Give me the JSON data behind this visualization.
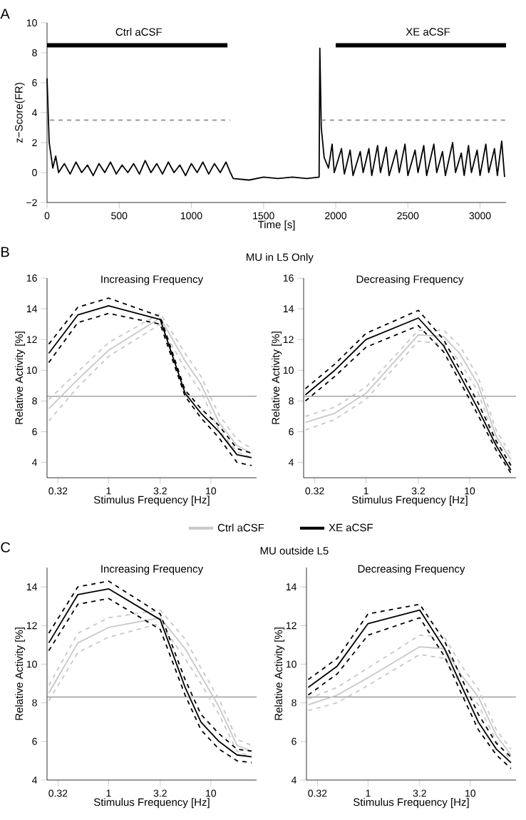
{
  "chart_data": [
    {
      "type": "line",
      "xlabel": "Time [s]",
      "ylabel": "z−Score(FR)",
      "xlim": [
        0,
        3180
      ],
      "ylim": [
        -2,
        10
      ],
      "xticks": [
        0,
        500,
        1000,
        1500,
        2000,
        2500,
        3000
      ],
      "yticks": [
        {
          "value": -2,
          "label": "−2"
        },
        0,
        2,
        4,
        6,
        8,
        10
      ],
      "annotations": [
        "A",
        "Ctrl aCSF",
        "XE aCSF"
      ],
      "series": [
        {
          "color": "#000000",
          "x": [
            0,
            15,
            40,
            60,
            80,
            120,
            160,
            200,
            240,
            280,
            320,
            360,
            400,
            440,
            480,
            520,
            560,
            600,
            640,
            680,
            720,
            760,
            800,
            840,
            880,
            920,
            960,
            1000,
            1040,
            1080,
            1120,
            1160,
            1200,
            1240,
            1270,
            1290,
            1400,
            1500,
            1600,
            1700,
            1800,
            1885,
            1890,
            1900,
            1920,
            1950,
            1975,
            1990,
            2040,
            2060,
            2100,
            2120,
            2170,
            2190,
            2230,
            2250,
            2290,
            2310,
            2350,
            2370,
            2420,
            2440,
            2480,
            2500,
            2550,
            2570,
            2610,
            2630,
            2680,
            2700,
            2740,
            2760,
            2810,
            2830,
            2870,
            2890,
            2920,
            2940,
            2980,
            3000,
            3040,
            3060,
            3100,
            3120,
            3150,
            3170
          ],
          "values": [
            6.3,
            2.0,
            0.3,
            1.1,
            0.0,
            0.6,
            -0.1,
            0.7,
            0.0,
            0.5,
            -0.2,
            0.6,
            0.0,
            0.7,
            -0.1,
            0.5,
            0.0,
            0.6,
            -0.1,
            0.8,
            0.0,
            0.6,
            -0.1,
            0.7,
            0.0,
            0.5,
            -0.2,
            0.6,
            0.0,
            0.7,
            -0.1,
            0.6,
            0.0,
            0.7,
            0.0,
            -0.4,
            -0.5,
            -0.3,
            -0.4,
            -0.3,
            -0.4,
            -0.3,
            8.3,
            3.0,
            1.0,
            0.3,
            1.9,
            0.0,
            1.6,
            -0.1,
            1.5,
            -0.2,
            1.4,
            0.0,
            1.6,
            -0.2,
            1.8,
            0.0,
            1.7,
            -0.2,
            1.5,
            0.0,
            1.9,
            -0.2,
            1.5,
            0.0,
            1.8,
            -0.2,
            1.9,
            0.0,
            1.4,
            -0.2,
            2.0,
            0.0,
            1.3,
            -0.2,
            1.8,
            0.0,
            1.5,
            -0.2,
            1.9,
            0.0,
            1.6,
            -0.2,
            2.1,
            -0.3
          ]
        },
        {
          "color": "#999999",
          "line_style": "dashed",
          "x": [
            20,
            1270,
            1580,
            1900,
            3180
          ],
          "values": [
            3.5,
            3.5,
            null,
            3.5,
            3.5
          ]
        },
        {
          "color": "#000000",
          "x": [
            0,
            1250,
            1580,
            2000,
            3180
          ],
          "values": [
            8.5,
            8.5,
            null,
            8.5,
            8.5
          ]
        }
      ]
    },
    {
      "type": "line",
      "title": "Increasing Frequency",
      "subtitle": "MU in L5 Only",
      "xlabel": "Stimulus Frequency [Hz]",
      "ylabel": "Relative Activity [%]",
      "log": "x",
      "xlim": [
        0.25,
        28
      ],
      "ylim": [
        3,
        16
      ],
      "xticks": [
        0.32,
        1,
        3.2,
        10
      ],
      "yticks": [
        4,
        6,
        8,
        10,
        12,
        14,
        16
      ],
      "legend": "bottom",
      "annotations": [
        "B"
      ],
      "ref_lines": [
        {
          "axis": "y",
          "value": 8.3,
          "color": "#555555"
        }
      ],
      "series": [
        {
          "name": "Ctrl aCSF",
          "color": "#c8c8c8",
          "x": [
            0.26,
            0.5,
            1,
            3.2,
            5.6,
            8,
            12,
            18,
            25
          ],
          "values": [
            7.5,
            9.4,
            11.3,
            13.4,
            10.6,
            9.1,
            6.6,
            5.1,
            4.6
          ]
        },
        {
          "color": "#c8c8c8",
          "line_style": "dashed",
          "x": [
            0.26,
            0.5,
            1,
            3.2,
            5.6,
            8,
            12,
            18,
            25
          ],
          "values": [
            6.7,
            8.9,
            10.9,
            13.0,
            10.1,
            8.6,
            6.1,
            4.7,
            4.3
          ]
        },
        {
          "color": "#c8c8c8",
          "line_style": "dashed",
          "x": [
            0.26,
            0.5,
            1,
            3.2,
            5.6,
            8,
            12,
            18,
            25
          ],
          "values": [
            8.1,
            9.9,
            11.8,
            13.7,
            11.1,
            9.6,
            7.1,
            5.5,
            4.9
          ]
        },
        {
          "name": "XE aCSF",
          "color": "#000000",
          "x": [
            0.26,
            0.5,
            1,
            3.2,
            5.6,
            8,
            12,
            18,
            25
          ],
          "values": [
            11.1,
            13.6,
            14.2,
            13.3,
            8.5,
            7.2,
            6.0,
            4.5,
            4.3
          ]
        },
        {
          "color": "#000000",
          "line_style": "dashed",
          "x": [
            0.26,
            0.5,
            1,
            3.2,
            5.6,
            8,
            12,
            18,
            25
          ],
          "values": [
            10.5,
            13.1,
            13.7,
            13.0,
            8.3,
            6.9,
            5.6,
            4.0,
            3.8
          ]
        },
        {
          "color": "#000000",
          "line_style": "dashed",
          "x": [
            0.26,
            0.5,
            1,
            3.2,
            5.6,
            8,
            12,
            18,
            25
          ],
          "values": [
            11.7,
            14.1,
            14.7,
            13.5,
            8.7,
            7.5,
            6.4,
            4.9,
            4.6
          ]
        }
      ]
    },
    {
      "type": "line",
      "title": "Decreasing  Frequency",
      "xlabel": "Stimulus Frequency [Hz]",
      "ylabel": "Relative Activity [%]",
      "log": "x",
      "xlim": [
        0.25,
        28
      ],
      "ylim": [
        3,
        16
      ],
      "xticks": [
        0.32,
        1,
        3.2,
        10
      ],
      "yticks": [
        4,
        6,
        8,
        10,
        12,
        14,
        16
      ],
      "ref_lines": [
        {
          "axis": "y",
          "value": 8.3,
          "color": "#555555"
        }
      ],
      "series": [
        {
          "color": "#c8c8c8",
          "x": [
            0.26,
            0.5,
            1,
            3.2,
            5.6,
            8,
            12,
            18,
            25
          ],
          "values": [
            6.6,
            7.2,
            8.5,
            12.3,
            12.2,
            11.1,
            9.1,
            5.7,
            4.2
          ]
        },
        {
          "color": "#c8c8c8",
          "line_style": "dashed",
          "x": [
            0.26,
            0.5,
            1,
            3.2,
            5.6,
            8,
            12,
            18,
            25
          ],
          "values": [
            6.1,
            6.8,
            8.1,
            11.9,
            11.7,
            10.6,
            8.6,
            5.3,
            3.9
          ]
        },
        {
          "color": "#c8c8c8",
          "line_style": "dashed",
          "x": [
            0.26,
            0.5,
            1,
            3.2,
            5.6,
            8,
            12,
            18,
            25
          ],
          "values": [
            7.0,
            7.6,
            8.9,
            12.6,
            12.6,
            11.6,
            9.6,
            6.1,
            4.5
          ]
        },
        {
          "color": "#000000",
          "x": [
            0.26,
            0.5,
            1,
            3.2,
            5.6,
            8,
            12,
            18,
            25
          ],
          "values": [
            8.4,
            10.0,
            12.0,
            13.4,
            11.6,
            9.7,
            7.5,
            5.1,
            3.5
          ]
        },
        {
          "color": "#000000",
          "line_style": "dashed",
          "x": [
            0.26,
            0.5,
            1,
            3.2,
            5.6,
            8,
            12,
            18,
            25
          ],
          "values": [
            8.0,
            9.6,
            11.5,
            12.9,
            11.2,
            9.3,
            7.1,
            4.8,
            3.3
          ]
        },
        {
          "color": "#000000",
          "line_style": "dashed",
          "x": [
            0.26,
            0.5,
            1,
            3.2,
            5.6,
            8,
            12,
            18,
            25
          ],
          "values": [
            8.8,
            10.4,
            12.4,
            13.9,
            12.0,
            10.1,
            7.9,
            5.4,
            3.8
          ]
        }
      ]
    },
    {
      "type": "line",
      "title": "Increasing Frequency",
      "subtitle": "MU outside L5",
      "xlabel": "Stimulus Frequency [Hz]",
      "ylabel": "Relative Activity [%]",
      "log": "x",
      "xlim": [
        0.25,
        28
      ],
      "ylim": [
        4,
        15
      ],
      "xticks": [
        0.32,
        1,
        3.2,
        10
      ],
      "yticks": [
        4,
        6,
        8,
        10,
        12,
        14
      ],
      "annotations": [
        "C"
      ],
      "ref_lines": [
        {
          "axis": "y",
          "value": 8.3,
          "color": "#555555"
        }
      ],
      "series": [
        {
          "color": "#c8c8c8",
          "x": [
            0.26,
            0.5,
            1,
            3.2,
            5.6,
            8,
            12,
            18,
            25
          ],
          "values": [
            8.5,
            11.1,
            11.9,
            12.4,
            10.8,
            9.4,
            7.8,
            5.8,
            5.5
          ]
        },
        {
          "color": "#c8c8c8",
          "line_style": "dashed",
          "x": [
            0.26,
            0.5,
            1,
            3.2,
            5.6,
            8,
            12,
            18,
            25
          ],
          "values": [
            8.1,
            10.6,
            11.4,
            12.1,
            10.3,
            9.0,
            7.4,
            5.5,
            5.2
          ]
        },
        {
          "color": "#c8c8c8",
          "line_style": "dashed",
          "x": [
            0.26,
            0.5,
            1,
            3.2,
            5.6,
            8,
            12,
            18,
            25
          ],
          "values": [
            8.9,
            11.6,
            12.4,
            12.8,
            11.3,
            9.8,
            8.2,
            6.1,
            5.8
          ]
        },
        {
          "color": "#000000",
          "x": [
            0.26,
            0.5,
            1,
            3.2,
            5.6,
            8,
            12,
            18,
            25
          ],
          "values": [
            11.1,
            13.6,
            13.9,
            12.3,
            8.8,
            7.0,
            6.0,
            5.3,
            5.2
          ]
        },
        {
          "color": "#000000",
          "line_style": "dashed",
          "x": [
            0.26,
            0.5,
            1,
            3.2,
            5.6,
            8,
            12,
            18,
            25
          ],
          "values": [
            10.7,
            13.1,
            13.4,
            11.8,
            8.4,
            6.6,
            5.6,
            5.0,
            4.9
          ]
        },
        {
          "color": "#000000",
          "line_style": "dashed",
          "x": [
            0.26,
            0.5,
            1,
            3.2,
            5.6,
            8,
            12,
            18,
            25
          ],
          "values": [
            11.6,
            14.0,
            14.3,
            12.6,
            9.2,
            7.4,
            6.4,
            5.6,
            5.5
          ]
        }
      ]
    },
    {
      "type": "line",
      "title": "Decreasing Frequency",
      "xlabel": "Stimulus Frequency [Hz]",
      "ylabel": "Relative Activity [%]",
      "log": "x",
      "xlim": [
        0.25,
        28
      ],
      "ylim": [
        4,
        15
      ],
      "xticks": [
        0.32,
        1,
        3.2,
        10
      ],
      "yticks": [
        4,
        6,
        8,
        10,
        12,
        14
      ],
      "ref_lines": [
        {
          "axis": "y",
          "value": 8.3,
          "color": "#555555"
        }
      ],
      "series": [
        {
          "color": "#c8c8c8",
          "x": [
            0.26,
            0.5,
            1,
            3.2,
            5.6,
            8,
            12,
            18,
            25
          ],
          "values": [
            7.9,
            8.4,
            9.3,
            10.9,
            10.8,
            9.5,
            8.3,
            6.3,
            5.3
          ]
        },
        {
          "color": "#c8c8c8",
          "line_style": "dashed",
          "x": [
            0.26,
            0.5,
            1,
            3.2,
            5.6,
            8,
            12,
            18,
            25
          ],
          "values": [
            7.6,
            8.0,
            8.9,
            10.5,
            10.3,
            9.0,
            7.9,
            6.0,
            5.0
          ]
        },
        {
          "color": "#c8c8c8",
          "line_style": "dashed",
          "x": [
            0.26,
            0.5,
            1,
            3.2,
            5.6,
            8,
            12,
            18,
            25
          ],
          "values": [
            8.2,
            8.8,
            9.8,
            11.5,
            11.4,
            10.0,
            8.7,
            6.6,
            5.6
          ]
        },
        {
          "color": "#000000",
          "x": [
            0.26,
            0.5,
            1,
            3.2,
            5.6,
            8,
            12,
            18,
            25
          ],
          "values": [
            8.8,
            9.9,
            12.1,
            12.8,
            10.8,
            9.0,
            7.0,
            5.6,
            4.9
          ]
        },
        {
          "color": "#000000",
          "line_style": "dashed",
          "x": [
            0.26,
            0.5,
            1,
            3.2,
            5.6,
            8,
            12,
            18,
            25
          ],
          "values": [
            8.4,
            9.5,
            11.5,
            12.4,
            10.4,
            8.6,
            6.6,
            5.3,
            4.6
          ]
        },
        {
          "color": "#000000",
          "line_style": "dashed",
          "x": [
            0.26,
            0.5,
            1,
            3.2,
            5.6,
            8,
            12,
            18,
            25
          ],
          "values": [
            9.2,
            10.3,
            12.6,
            13.1,
            11.2,
            9.4,
            7.4,
            5.9,
            5.2
          ]
        }
      ]
    }
  ]
}
